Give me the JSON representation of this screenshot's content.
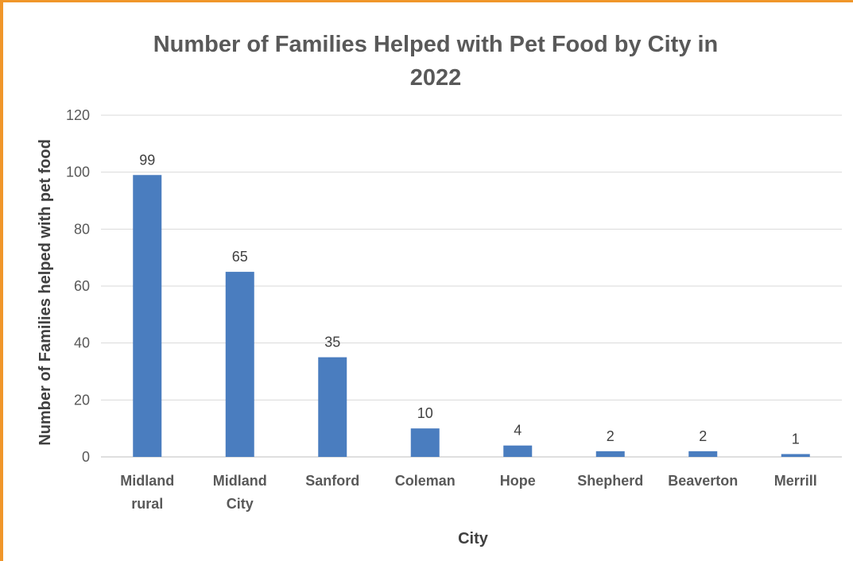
{
  "chart_data": {
    "type": "bar",
    "title_lines": [
      "Number of Families Helped with Pet Food by City in",
      "2022"
    ],
    "xlabel": "City",
    "ylabel": "Number of Families helped with pet food",
    "ylim": [
      0,
      120
    ],
    "yticks": [
      0,
      20,
      40,
      60,
      80,
      100,
      120
    ],
    "grid": true,
    "legend": "none",
    "bar_color": "#4a7dbf",
    "categories": [
      [
        "Midland",
        "rural"
      ],
      [
        "Midland",
        "City"
      ],
      [
        "Sanford"
      ],
      [
        "Coleman"
      ],
      [
        "Hope"
      ],
      [
        "Shepherd"
      ],
      [
        "Beaverton"
      ],
      [
        "Merrill"
      ]
    ],
    "values": [
      99,
      65,
      35,
      10,
      4,
      2,
      2,
      1
    ]
  },
  "frame": {
    "border_color": "#f0962a"
  }
}
